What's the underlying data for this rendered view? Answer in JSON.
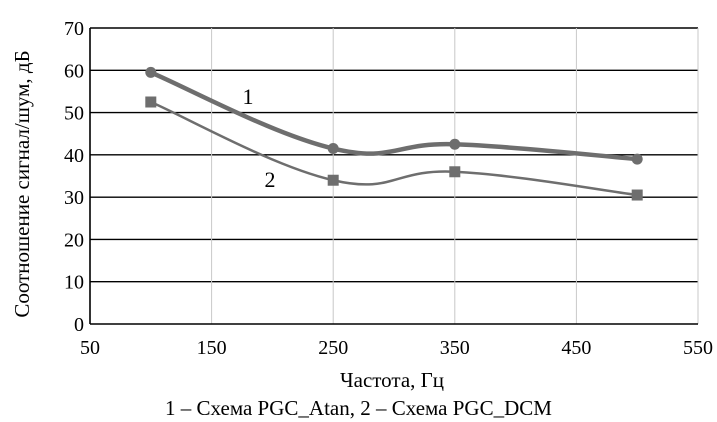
{
  "chart_data": {
    "type": "line",
    "xlabel": "Частота, Гц",
    "ylabel": "Соотношение сигнал/шум, дБ",
    "xlim": [
      50,
      550
    ],
    "ylim": [
      0,
      70
    ],
    "x_ticks": [
      "50",
      "150",
      "250",
      "350",
      "450",
      "550"
    ],
    "y_ticks": [
      "0",
      "10",
      "20",
      "30",
      "40",
      "50",
      "60",
      "70"
    ],
    "grid": true,
    "series": [
      {
        "name": "1",
        "x": [
          100,
          250,
          350,
          500
        ],
        "y": [
          59.5,
          41.5,
          42.5,
          39
        ],
        "marker": "circle",
        "color": "#6e6e6e"
      },
      {
        "name": "2",
        "x": [
          100,
          250,
          350,
          500
        ],
        "y": [
          52.5,
          34,
          36,
          30.5
        ],
        "marker": "square",
        "color": "#6e6e6e"
      }
    ],
    "caption": "1 – Схема PGC_Atan, 2 – Схема PGC_DCM"
  }
}
